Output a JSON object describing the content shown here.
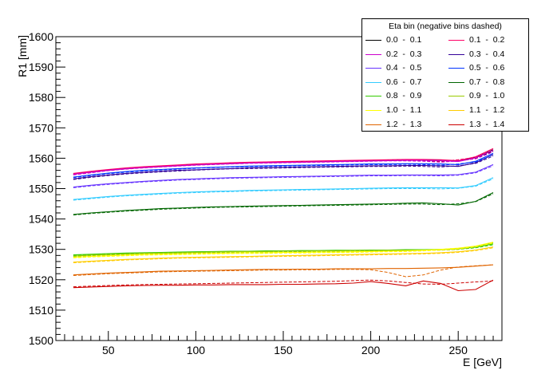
{
  "chart_data": {
    "type": "line",
    "xlabel": "E [GeV]",
    "ylabel": "R1 [mm]",
    "xlim": [
      20,
      275
    ],
    "ylim": [
      1500,
      1600
    ],
    "x_ticks": [
      50,
      100,
      150,
      200,
      250
    ],
    "y_ticks": [
      1500,
      1510,
      1520,
      1530,
      1540,
      1550,
      1560,
      1570,
      1580,
      1590,
      1600
    ],
    "grid": false,
    "legend_title": "Eta bin (negative bins dashed)",
    "legend_position": "top-right",
    "x": [
      30,
      40,
      50,
      60,
      70,
      80,
      90,
      100,
      110,
      120,
      130,
      140,
      150,
      160,
      170,
      180,
      190,
      200,
      210,
      220,
      230,
      240,
      250,
      260,
      270
    ],
    "series": [
      {
        "name": "0.0  -  0.1",
        "color": "#000000",
        "values": [
          1554.8,
          1555.5,
          1556.1,
          1556.6,
          1557.0,
          1557.3,
          1557.6,
          1557.9,
          1558.1,
          1558.3,
          1558.5,
          1558.7,
          1558.8,
          1558.9,
          1559.0,
          1559.1,
          1559.2,
          1559.3,
          1559.4,
          1559.5,
          1559.5,
          1559.4,
          1559.0,
          1560.2,
          1562.8
        ],
        "neg_values": [
          1554.6,
          1555.3,
          1556.0,
          1556.5,
          1556.9,
          1557.2,
          1557.5,
          1557.8,
          1558.0,
          1558.2,
          1558.4,
          1558.6,
          1558.7,
          1558.8,
          1558.9,
          1559.0,
          1559.1,
          1559.2,
          1559.3,
          1559.3,
          1559.2,
          1558.8,
          1559.3,
          1560.0,
          1562.3
        ]
      },
      {
        "name": "0.1  -  0.2",
        "color": "#ff0066",
        "values": [
          1555.0,
          1555.7,
          1556.3,
          1556.8,
          1557.2,
          1557.5,
          1557.8,
          1558.1,
          1558.3,
          1558.5,
          1558.7,
          1558.8,
          1558.9,
          1559.0,
          1559.1,
          1559.2,
          1559.3,
          1559.4,
          1559.5,
          1559.6,
          1559.6,
          1559.5,
          1559.2,
          1560.5,
          1563.2
        ],
        "neg_values": [
          1554.8,
          1555.5,
          1556.1,
          1556.6,
          1557.0,
          1557.4,
          1557.7,
          1558.0,
          1558.2,
          1558.4,
          1558.6,
          1558.7,
          1558.8,
          1558.9,
          1559.0,
          1559.1,
          1559.2,
          1559.3,
          1559.4,
          1559.4,
          1559.3,
          1559.0,
          1559.5,
          1560.3,
          1562.7
        ]
      },
      {
        "name": "0.2  -  0.3",
        "color": "#cc00cc",
        "values": [
          1554.7,
          1555.4,
          1556.0,
          1556.5,
          1556.9,
          1557.2,
          1557.5,
          1557.8,
          1558.0,
          1558.2,
          1558.4,
          1558.5,
          1558.6,
          1558.7,
          1558.8,
          1558.9,
          1559.0,
          1559.1,
          1559.2,
          1559.3,
          1559.3,
          1559.2,
          1558.9,
          1560.1,
          1562.6
        ],
        "neg_values": [
          1554.5,
          1555.2,
          1555.9,
          1556.4,
          1556.8,
          1557.1,
          1557.4,
          1557.7,
          1557.9,
          1558.1,
          1558.3,
          1558.4,
          1558.5,
          1558.6,
          1558.7,
          1558.8,
          1558.9,
          1559.0,
          1559.1,
          1559.1,
          1559.0,
          1558.7,
          1559.1,
          1559.8,
          1562.1
        ]
      },
      {
        "name": "0.3  -  0.4",
        "color": "#330099",
        "values": [
          1553.2,
          1553.9,
          1554.5,
          1555.0,
          1555.4,
          1555.7,
          1556.0,
          1556.2,
          1556.4,
          1556.6,
          1556.8,
          1556.9,
          1557.0,
          1557.1,
          1557.2,
          1557.3,
          1557.4,
          1557.5,
          1557.5,
          1557.6,
          1557.6,
          1557.5,
          1557.3,
          1558.5,
          1561.2
        ],
        "neg_values": [
          1553.0,
          1553.7,
          1554.3,
          1554.8,
          1555.2,
          1555.5,
          1555.8,
          1556.1,
          1556.3,
          1556.5,
          1556.6,
          1556.7,
          1556.8,
          1556.9,
          1557.0,
          1557.1,
          1557.2,
          1557.3,
          1557.3,
          1557.4,
          1557.3,
          1557.1,
          1557.5,
          1558.3,
          1560.7
        ]
      },
      {
        "name": "0.4  -  0.5",
        "color": "#6633ff",
        "values": [
          1550.5,
          1551.1,
          1551.6,
          1552.0,
          1552.4,
          1552.7,
          1553.0,
          1553.2,
          1553.4,
          1553.6,
          1553.7,
          1553.8,
          1553.9,
          1554.0,
          1554.1,
          1554.2,
          1554.3,
          1554.4,
          1554.4,
          1554.5,
          1554.5,
          1554.5,
          1554.6,
          1555.4,
          1557.9
        ],
        "neg_values": [
          1550.3,
          1550.9,
          1551.4,
          1551.8,
          1552.2,
          1552.5,
          1552.8,
          1553.0,
          1553.2,
          1553.4,
          1553.5,
          1553.6,
          1553.7,
          1553.8,
          1553.9,
          1554.0,
          1554.1,
          1554.2,
          1554.2,
          1554.3,
          1554.3,
          1554.2,
          1554.4,
          1555.2,
          1557.5
        ]
      },
      {
        "name": "0.5  -  0.6",
        "color": "#0033ff",
        "values": [
          1553.8,
          1554.5,
          1555.1,
          1555.6,
          1556.0,
          1556.3,
          1556.6,
          1556.8,
          1557.0,
          1557.2,
          1557.4,
          1557.5,
          1557.6,
          1557.7,
          1557.8,
          1557.9,
          1558.0,
          1558.1,
          1558.1,
          1558.2,
          1558.2,
          1558.1,
          1557.9,
          1559.0,
          1561.6
        ],
        "neg_values": [
          1553.6,
          1554.3,
          1554.9,
          1555.4,
          1555.8,
          1556.1,
          1556.4,
          1556.7,
          1556.9,
          1557.1,
          1557.2,
          1557.3,
          1557.4,
          1557.5,
          1557.6,
          1557.7,
          1557.8,
          1557.9,
          1557.9,
          1558.0,
          1557.9,
          1557.7,
          1558.1,
          1558.8,
          1561.1
        ]
      },
      {
        "name": "0.6  -  0.7",
        "color": "#33ccff",
        "values": [
          1546.4,
          1546.9,
          1547.4,
          1547.8,
          1548.1,
          1548.4,
          1548.7,
          1548.9,
          1549.1,
          1549.2,
          1549.4,
          1549.5,
          1549.6,
          1549.7,
          1549.8,
          1549.9,
          1550.0,
          1550.1,
          1550.2,
          1550.3,
          1550.3,
          1550.3,
          1550.2,
          1551.0,
          1553.6
        ],
        "neg_values": [
          1546.2,
          1546.7,
          1547.2,
          1547.6,
          1547.9,
          1548.2,
          1548.5,
          1548.7,
          1548.9,
          1549.0,
          1549.2,
          1549.3,
          1549.4,
          1549.5,
          1549.6,
          1549.7,
          1549.8,
          1549.9,
          1550.0,
          1550.0,
          1550.0,
          1549.9,
          1550.1,
          1550.8,
          1553.2
        ]
      },
      {
        "name": "0.7  -  0.8",
        "color": "#006600",
        "values": [
          1541.5,
          1542.0,
          1542.4,
          1542.8,
          1543.1,
          1543.4,
          1543.6,
          1543.8,
          1544.0,
          1544.1,
          1544.2,
          1544.3,
          1544.4,
          1544.5,
          1544.6,
          1544.7,
          1544.8,
          1544.9,
          1545.0,
          1545.2,
          1545.3,
          1545.0,
          1544.6,
          1545.8,
          1548.7
        ],
        "neg_values": [
          1541.3,
          1541.8,
          1542.2,
          1542.6,
          1542.9,
          1543.2,
          1543.4,
          1543.6,
          1543.8,
          1543.9,
          1544.0,
          1544.1,
          1544.2,
          1544.3,
          1544.4,
          1544.5,
          1544.6,
          1544.7,
          1544.8,
          1544.9,
          1544.9,
          1544.7,
          1545.0,
          1545.7,
          1548.3
        ]
      },
      {
        "name": "0.8  -  0.9",
        "color": "#33cc00",
        "values": [
          1528.2,
          1528.4,
          1528.6,
          1528.8,
          1528.9,
          1529.0,
          1529.1,
          1529.2,
          1529.3,
          1529.4,
          1529.4,
          1529.5,
          1529.5,
          1529.6,
          1529.6,
          1529.7,
          1529.7,
          1529.8,
          1529.8,
          1529.9,
          1529.9,
          1530.0,
          1530.2,
          1530.7,
          1531.8
        ],
        "neg_values": [
          1528.0,
          1528.2,
          1528.4,
          1528.6,
          1528.7,
          1528.8,
          1528.9,
          1529.0,
          1529.1,
          1529.2,
          1529.2,
          1529.3,
          1529.3,
          1529.4,
          1529.4,
          1529.5,
          1529.5,
          1529.6,
          1529.6,
          1529.7,
          1529.7,
          1529.8,
          1530.0,
          1530.5,
          1531.5
        ]
      },
      {
        "name": "0.9  -  1.0",
        "color": "#99cc00",
        "values": [
          1527.8,
          1528.1,
          1528.3,
          1528.5,
          1528.7,
          1528.8,
          1528.9,
          1529.0,
          1529.1,
          1529.2,
          1529.3,
          1529.3,
          1529.4,
          1529.4,
          1529.5,
          1529.5,
          1529.6,
          1529.6,
          1529.7,
          1529.7,
          1529.8,
          1529.9,
          1530.2,
          1531.0,
          1532.2
        ],
        "neg_values": [
          1527.6,
          1527.9,
          1528.1,
          1528.3,
          1528.5,
          1528.6,
          1528.7,
          1528.8,
          1528.9,
          1529.0,
          1529.1,
          1529.1,
          1529.2,
          1529.2,
          1529.3,
          1529.3,
          1529.4,
          1529.4,
          1529.5,
          1529.5,
          1529.6,
          1529.7,
          1530.0,
          1530.8,
          1532.0
        ]
      },
      {
        "name": "1.0  -  1.1",
        "color": "#ffff00",
        "values": [
          1527.4,
          1527.7,
          1527.9,
          1528.1,
          1528.3,
          1528.4,
          1528.5,
          1528.6,
          1528.7,
          1528.8,
          1528.9,
          1528.9,
          1529.0,
          1529.0,
          1529.1,
          1529.1,
          1529.2,
          1529.3,
          1529.4,
          1529.5,
          1529.7,
          1530.0,
          1530.4,
          1531.1,
          1532.4
        ],
        "neg_values": [
          1527.2,
          1527.5,
          1527.7,
          1527.9,
          1528.1,
          1528.2,
          1528.3,
          1528.4,
          1528.5,
          1528.6,
          1528.7,
          1528.7,
          1528.8,
          1528.8,
          1528.9,
          1528.9,
          1529.0,
          1529.1,
          1529.2,
          1529.3,
          1529.5,
          1529.8,
          1530.2,
          1530.9,
          1532.1
        ]
      },
      {
        "name": "1.1  -  1.2",
        "color": "#ffcc00",
        "values": [
          1525.8,
          1526.1,
          1526.4,
          1526.7,
          1526.9,
          1527.1,
          1527.3,
          1527.4,
          1527.5,
          1527.6,
          1527.7,
          1527.8,
          1527.9,
          1528.0,
          1528.1,
          1528.2,
          1528.3,
          1528.4,
          1528.5,
          1528.6,
          1528.7,
          1528.9,
          1529.2,
          1529.8,
          1530.8
        ],
        "neg_values": [
          1525.6,
          1525.9,
          1526.2,
          1526.5,
          1526.7,
          1526.9,
          1527.1,
          1527.2,
          1527.3,
          1527.4,
          1527.5,
          1527.6,
          1527.7,
          1527.8,
          1527.9,
          1528.0,
          1528.1,
          1528.2,
          1528.3,
          1528.4,
          1528.5,
          1528.7,
          1529.0,
          1529.6,
          1530.5
        ]
      },
      {
        "name": "1.2  -  1.3",
        "color": "#e06400",
        "values": [
          1521.6,
          1521.9,
          1522.2,
          1522.4,
          1522.6,
          1522.8,
          1522.9,
          1523.0,
          1523.1,
          1523.2,
          1523.3,
          1523.4,
          1523.4,
          1523.5,
          1523.5,
          1523.6,
          1523.6,
          1523.6,
          1523.7,
          1523.7,
          1523.8,
          1523.9,
          1524.1,
          1524.5,
          1524.9
        ],
        "neg_values": [
          1521.4,
          1521.7,
          1522.0,
          1522.2,
          1522.4,
          1522.6,
          1522.7,
          1522.8,
          1522.9,
          1523.0,
          1523.1,
          1523.2,
          1523.2,
          1523.3,
          1523.3,
          1523.4,
          1523.4,
          1523.3,
          1522.4,
          1521.0,
          1521.6,
          1523.2,
          1524.2,
          1524.6,
          1524.9
        ]
      },
      {
        "name": "1.3  -  1.4",
        "color": "#cc0000",
        "values": [
          1517.4,
          1517.6,
          1517.8,
          1518.0,
          1518.1,
          1518.2,
          1518.2,
          1518.3,
          1518.3,
          1518.4,
          1518.4,
          1518.4,
          1518.5,
          1518.5,
          1518.6,
          1518.7,
          1518.9,
          1519.4,
          1518.8,
          1518.0,
          1519.6,
          1518.8,
          1516.4,
          1516.8,
          1519.9
        ],
        "neg_values": [
          1517.7,
          1517.9,
          1518.1,
          1518.3,
          1518.4,
          1518.5,
          1518.6,
          1518.7,
          1518.8,
          1518.9,
          1519.0,
          1519.1,
          1519.2,
          1519.3,
          1519.4,
          1519.5,
          1519.7,
          1519.9,
          1519.6,
          1519.1,
          1518.6,
          1518.5,
          1518.9,
          1519.3,
          1519.6
        ]
      }
    ]
  }
}
